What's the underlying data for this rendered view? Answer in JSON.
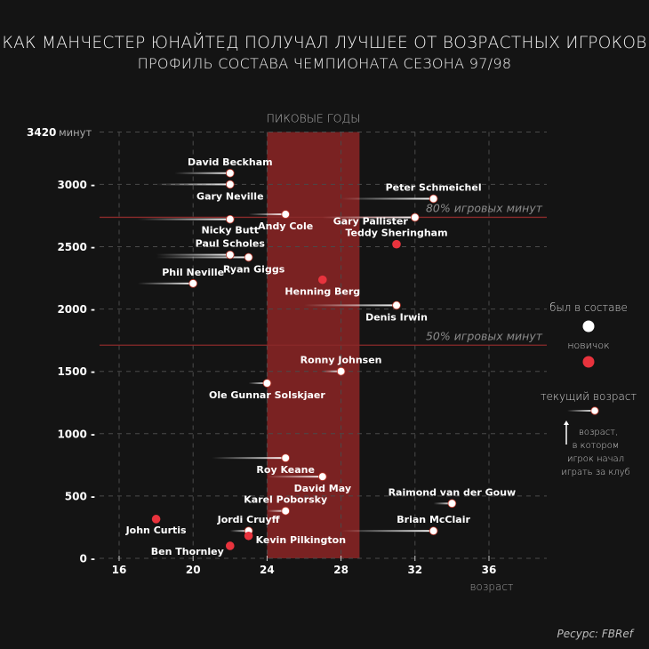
{
  "header": {
    "title": "КАК МАНЧЕСТЕР ЮНАЙТЕД ПОЛУЧАЛ ЛУЧШЕЕ ОТ ВОЗРАСТНЫХ ИГРОКОВ",
    "subtitle": "ПРОФИЛЬ СОСТАВА ЧЕМПИОНАТА СЕЗОНА 97/98"
  },
  "source": "Ресурс: FBRef",
  "colors": {
    "background": "#141414",
    "peak_band": "#7a2222",
    "newcomer": "#e8333d",
    "existing": "#ffffff",
    "reference_line": "#8a2a2a",
    "grid": "#4a4a4a"
  },
  "chart_data": {
    "type": "scatter",
    "title": "КАК МАНЧЕСТЕР ЮНАЙТЕД ПОЛУЧАЛ ЛУЧШЕЕ ОТ ВОЗРАСТНЫХ ИГРОКОВ",
    "subtitle": "ПРОФИЛЬ СОСТАВА ЧЕМПИОНАТА СЕЗОНА 97/98",
    "xlabel": "возраст",
    "ylabel": "минут",
    "xlim": [
      15,
      40
    ],
    "ylim": [
      0,
      3420
    ],
    "x_ticks": [
      16,
      20,
      24,
      28,
      32,
      36
    ],
    "y_ticks": [
      0,
      500,
      1000,
      1500,
      2000,
      2500,
      3000
    ],
    "y_max_label": "3420",
    "y_max_unit": "минут",
    "grid": true,
    "peak_band": {
      "label": "ПИКОВЫЕ ГОДЫ",
      "from": 24,
      "to": 29
    },
    "reference_lines": [
      {
        "label": "80% игровых минут",
        "value": 2736
      },
      {
        "label": "50% игровых минут",
        "value": 1710
      }
    ],
    "legend": {
      "position": "right",
      "existing_label": "был в составе",
      "newcomer_label": "новичок",
      "current_age_label": "текущий возраст",
      "joined_age_label": [
        "возраст,",
        "в котором",
        "игрок начал",
        "играть за клуб"
      ]
    },
    "players": [
      {
        "name": "David Beckham",
        "age": 22,
        "joined": 19,
        "minutes": 3090,
        "new": false,
        "label_pos": "above"
      },
      {
        "name": "Gary Neville",
        "age": 22,
        "joined": 18,
        "minutes": 3000,
        "new": false,
        "label_pos": "below"
      },
      {
        "name": "Peter Schmeichel",
        "age": 33,
        "joined": 28,
        "minutes": 2885,
        "new": false,
        "label_pos": "above"
      },
      {
        "name": "Andy Cole",
        "age": 25,
        "joined": 23,
        "minutes": 2760,
        "new": false,
        "label_pos": "below"
      },
      {
        "name": "Gary Pallister",
        "age": 32,
        "joined": 27,
        "minutes": 2735,
        "new": false,
        "label_pos": "left"
      },
      {
        "name": "Nicky Butt",
        "age": 22,
        "joined": 17,
        "minutes": 2720,
        "new": false,
        "label_pos": "below"
      },
      {
        "name": "Teddy Sheringham",
        "age": 31,
        "joined": 31,
        "minutes": 2520,
        "new": true,
        "label_pos": "above"
      },
      {
        "name": "Paul Scholes",
        "age": 22,
        "joined": 18,
        "minutes": 2435,
        "new": false,
        "label_pos": "above"
      },
      {
        "name": "Ryan Giggs",
        "age": 23,
        "joined": 18,
        "minutes": 2415,
        "new": false,
        "label_pos": "below"
      },
      {
        "name": "Henning Berg",
        "age": 27,
        "joined": 27,
        "minutes": 2235,
        "new": true,
        "label_pos": "below"
      },
      {
        "name": "Phil Neville",
        "age": 20,
        "joined": 17,
        "minutes": 2205,
        "new": false,
        "label_pos": "above"
      },
      {
        "name": "Denis Irwin",
        "age": 31,
        "joined": 26,
        "minutes": 2030,
        "new": false,
        "label_pos": "below"
      },
      {
        "name": "Ronny Johnsen",
        "age": 28,
        "joined": 27,
        "minutes": 1500,
        "new": false,
        "label_pos": "above"
      },
      {
        "name": "Ole Gunnar Solskjaer",
        "age": 24,
        "joined": 23,
        "minutes": 1405,
        "new": false,
        "label_pos": "below"
      },
      {
        "name": "Roy Keane",
        "age": 25,
        "joined": 21,
        "minutes": 805,
        "new": false,
        "label_pos": "below"
      },
      {
        "name": "David May",
        "age": 27,
        "joined": 24,
        "minutes": 655,
        "new": false,
        "label_pos": "below"
      },
      {
        "name": "Raimond van der Gouw",
        "age": 34,
        "joined": 33,
        "minutes": 440,
        "new": false,
        "label_pos": "above"
      },
      {
        "name": "Karel Poborsky",
        "age": 25,
        "joined": 24,
        "minutes": 380,
        "new": false,
        "label_pos": "above"
      },
      {
        "name": "Brian McClair",
        "age": 33,
        "joined": 28,
        "minutes": 220,
        "new": false,
        "label_pos": "above"
      },
      {
        "name": "John Curtis",
        "age": 18,
        "joined": 18,
        "minutes": 315,
        "new": true,
        "label_pos": "below"
      },
      {
        "name": "Jordi Cruyff",
        "age": 23,
        "joined": 22,
        "minutes": 220,
        "new": false,
        "label_pos": "above"
      },
      {
        "name": "Kevin Pilkington",
        "age": 23,
        "joined": 23,
        "minutes": 180,
        "new": true,
        "label_pos": "right"
      },
      {
        "name": "Ben Thornley",
        "age": 22,
        "joined": 22,
        "minutes": 100,
        "new": true,
        "label_pos": "left"
      }
    ]
  }
}
